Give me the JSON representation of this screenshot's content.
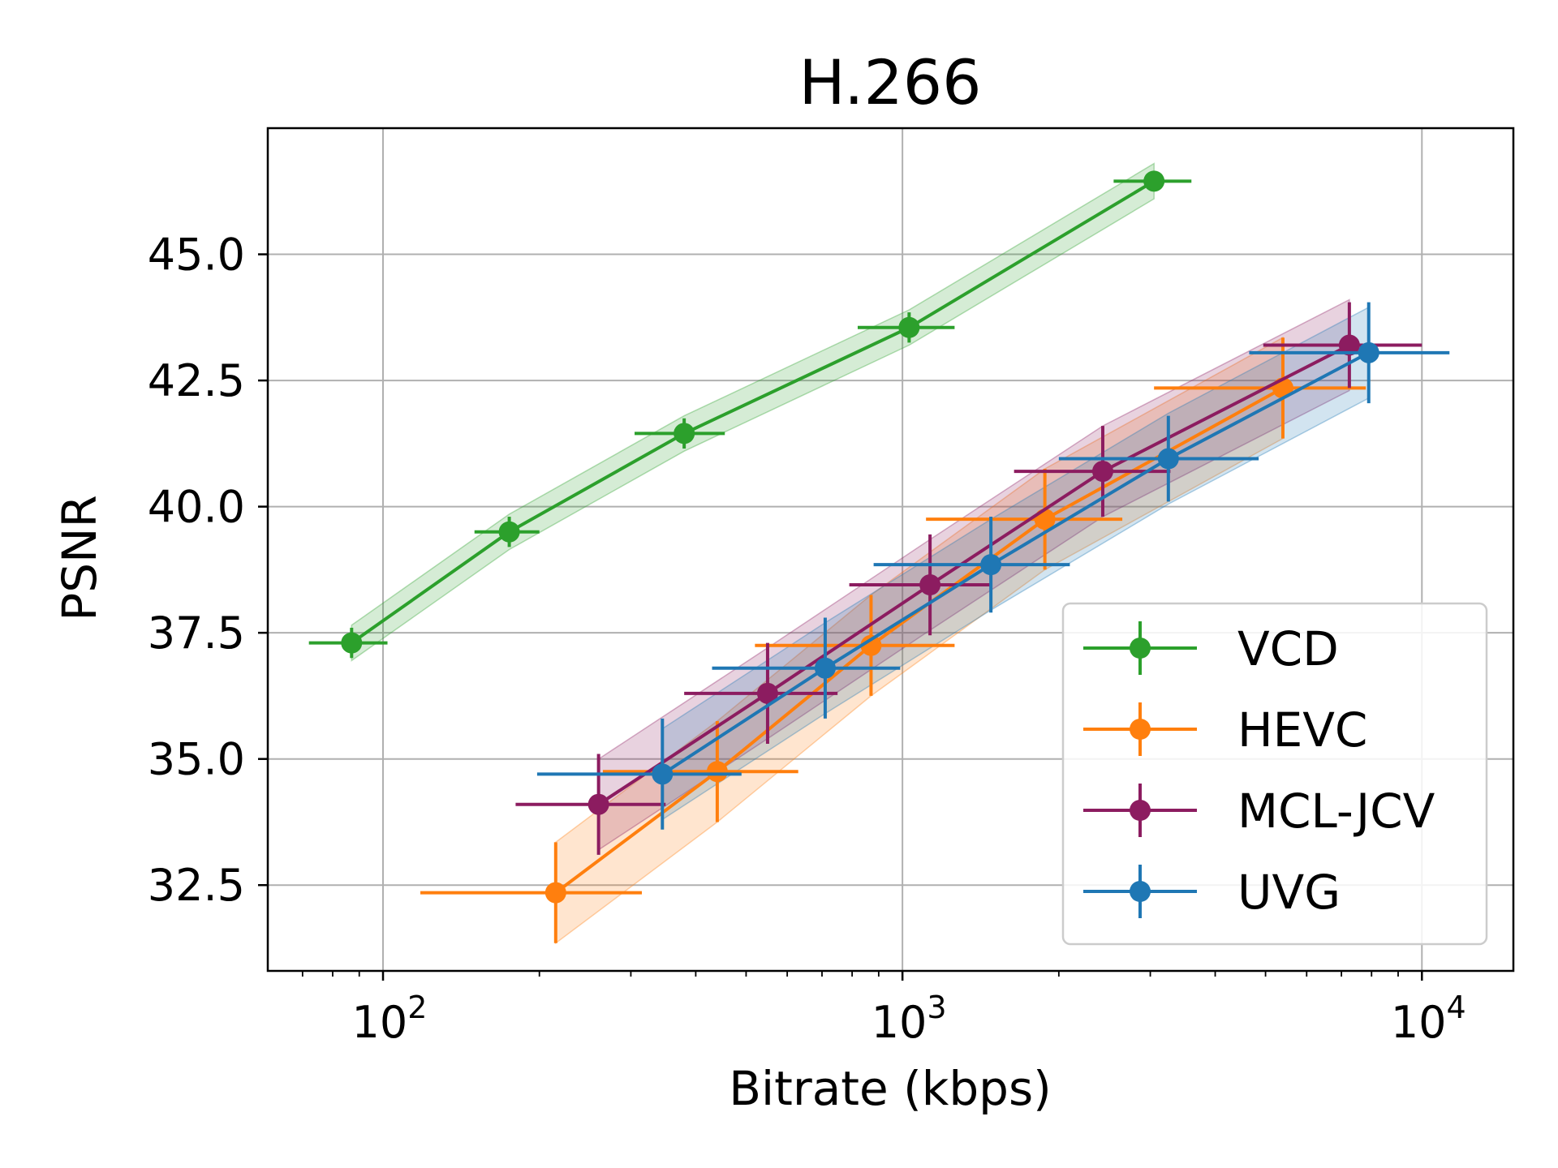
{
  "chart_data": {
    "type": "line",
    "title": "H.266",
    "xlabel": "Bitrate (kbps)",
    "ylabel": "PSNR",
    "xscale": "log",
    "xlim": [
      60,
      15000
    ],
    "ylim": [
      30.8,
      47.5
    ],
    "grid": true,
    "legend_position": "bottom-right",
    "x_ticks": [
      {
        "value": 100,
        "base": "10",
        "exp": "2"
      },
      {
        "value": 1000,
        "base": "10",
        "exp": "3"
      },
      {
        "value": 10000,
        "base": "10",
        "exp": "4"
      }
    ],
    "y_ticks": [
      {
        "value": 32.5,
        "label": "32.5"
      },
      {
        "value": 35.0,
        "label": "35.0"
      },
      {
        "value": 37.5,
        "label": "37.5"
      },
      {
        "value": 40.0,
        "label": "40.0"
      },
      {
        "value": 42.5,
        "label": "42.5"
      },
      {
        "value": 45.0,
        "label": "45.0"
      }
    ],
    "series": [
      {
        "name": "VCD",
        "color": "#2ca02c",
        "x": [
          87,
          175,
          380,
          1030,
          3050
        ],
        "y": [
          37.3,
          39.5,
          41.45,
          43.55,
          46.45
        ],
        "xerr_low": [
          72,
          150,
          305,
          820,
          2550
        ],
        "xerr_high": [
          102,
          200,
          455,
          1260,
          3600
        ],
        "yerr": [
          0.3,
          0.3,
          0.3,
          0.3,
          0.2
        ],
        "band": 0.35
      },
      {
        "name": "HEVC",
        "color": "#ff7f0e",
        "x": [
          215,
          440,
          870,
          1880,
          5400
        ],
        "y": [
          32.35,
          34.75,
          37.25,
          39.75,
          42.35
        ],
        "xerr_low": [
          118,
          265,
          520,
          1110,
          3050
        ],
        "xerr_high": [
          315,
          630,
          1260,
          2650,
          7800
        ],
        "yerr": [
          1.0,
          1.0,
          1.0,
          1.0,
          1.0
        ],
        "band": 1.0
      },
      {
        "name": "MCL-JCV",
        "color": "#8c1c60",
        "x": [
          260,
          550,
          1130,
          2430,
          7250
        ],
        "y": [
          34.1,
          36.3,
          38.45,
          40.7,
          43.2
        ],
        "xerr_low": [
          180,
          380,
          790,
          1640,
          4950
        ],
        "xerr_high": [
          350,
          750,
          1490,
          3280,
          10000
        ],
        "yerr": [
          1.0,
          1.0,
          1.0,
          0.9,
          0.85
        ],
        "band": 0.9
      },
      {
        "name": "UVG",
        "color": "#1f77b4",
        "x": [
          345,
          710,
          1480,
          3250,
          7900
        ],
        "y": [
          34.7,
          36.8,
          38.85,
          40.95,
          43.05
        ],
        "xerr_low": [
          198,
          430,
          880,
          2000,
          4650
        ],
        "xerr_high": [
          490,
          990,
          2100,
          4850,
          11300
        ],
        "yerr": [
          1.1,
          1.0,
          0.95,
          0.85,
          1.0
        ],
        "band": 0.9
      }
    ]
  }
}
